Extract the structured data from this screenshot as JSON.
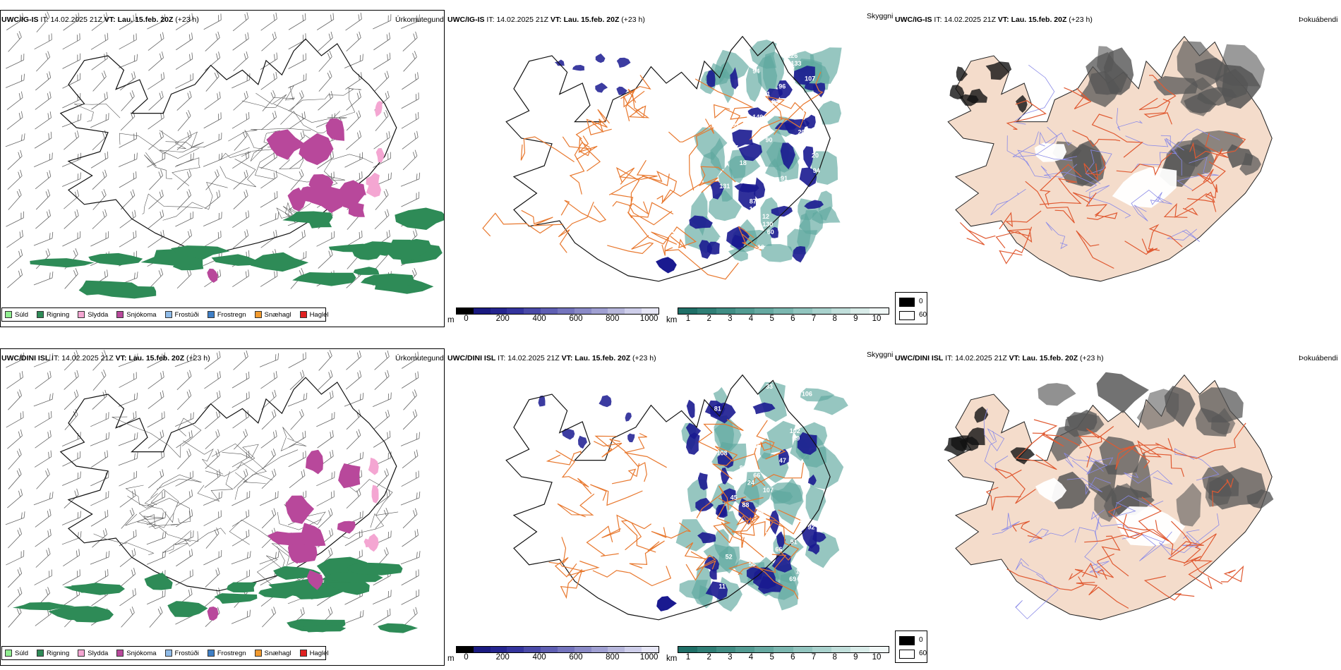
{
  "rows": [
    {
      "precip": {
        "model": "UWC/IG-IS",
        "it_label": "IT:",
        "it": "14.02.2025 21Z",
        "vt_label": "VT:",
        "vt": "Lau. 15.feb. 20Z",
        "lead": "(+23 h)",
        "right_title": "Úrkomutegund"
      },
      "cloud": {
        "model": "UWC/IG-IS",
        "it_label": "IT:",
        "it": "14.02.2025 21Z",
        "vt_label": "VT:",
        "vt": "Lau. 15.feb. 20Z",
        "lead": "(+23 h)",
        "right_title": "Skyggni"
      },
      "fog": {
        "model": "UWC/IG-IS",
        "it_label": "IT:",
        "it": "14.02.2025 21Z",
        "vt_label": "VT:",
        "vt": "Lau. 15.feb. 20Z",
        "lead": "(+23 h)",
        "right_title": "Þokuábendi"
      },
      "cloud_labels": [
        "98",
        "126",
        "133",
        "94",
        "107",
        "96",
        "81",
        "86",
        "149",
        "140",
        "91",
        "20",
        "90",
        "97",
        "20",
        "18",
        "94",
        "91",
        "131",
        "100",
        "87",
        "102",
        "12",
        "130",
        "60",
        "7",
        "10",
        "39"
      ]
    },
    {
      "precip": {
        "model": "UWC/DINI ISL",
        "it_label": "IT:",
        "it": "14.02.2025 21Z",
        "vt_label": "VT:",
        "vt": "Lau. 15.feb. 20Z",
        "lead": "(+23 h)",
        "right_title": "Úrkomutegund"
      },
      "cloud": {
        "model": "UWC/DINI ISL",
        "it_label": "IT:",
        "it": "14.02.2025 21Z",
        "vt_label": "VT:",
        "vt": "Lau. 15.feb. 20Z",
        "lead": "(+23 h)",
        "right_title": "Skyggni"
      },
      "fog": {
        "model": "UWC/DINI ISL",
        "it_label": "IT:",
        "it": "14.02.2025 21Z",
        "vt_label": "VT:",
        "vt": "Lau. 15.feb. 20Z",
        "lead": "(+23 h)",
        "right_title": "Þokuábendi"
      },
      "cloud_labels": [
        "33",
        "106",
        "157",
        "81",
        "122",
        "77",
        "102",
        "89",
        "122",
        "108",
        "47",
        "89",
        "66",
        "24",
        "107",
        "45",
        "88",
        "86",
        "12",
        "92",
        "12",
        "91",
        "66",
        "52",
        "56",
        "10",
        "69",
        "11",
        "58"
      ]
    }
  ],
  "precip_legend": [
    {
      "label": "Súld",
      "color": "#90ee90"
    },
    {
      "label": "Rigning",
      "color": "#2e8b57"
    },
    {
      "label": "Slydda",
      "color": "#f4a6d2"
    },
    {
      "label": "Snjókoma",
      "color": "#b8489b"
    },
    {
      "label": "Frostúði",
      "color": "#8fbbe8"
    },
    {
      "label": "Frostregn",
      "color": "#3f7fc6"
    },
    {
      "label": "Snæhagl",
      "color": "#f29a2e"
    },
    {
      "label": "Haglél",
      "color": "#e02020"
    }
  ],
  "cloud_base_scale": {
    "unit": "m",
    "ticks": [
      "0",
      "200",
      "400",
      "600",
      "800",
      "1000"
    ],
    "colors": [
      "#000000",
      "#1a1a80",
      "#25258f",
      "#34349d",
      "#4a4aa8",
      "#5f5fb3",
      "#7474bd",
      "#8a8ac7",
      "#a0a0d2",
      "#b7b7dc",
      "#ceceea",
      "#e6e6f5"
    ]
  },
  "visibility_scale": {
    "unit": "km",
    "ticks": [
      "1",
      "2",
      "3",
      "4",
      "5",
      "6",
      "7",
      "8",
      "9",
      "10"
    ],
    "colors": [
      "#1f6f67",
      "#2f7e75",
      "#408d84",
      "#529b92",
      "#66a9a1",
      "#7bb7b0",
      "#92c5bf",
      "#a9d2cd",
      "#c1dfdb",
      "#d9ece9",
      "#f0f7f6"
    ]
  },
  "fog_scale": {
    "items": [
      {
        "label": "0",
        "color": "#000000"
      },
      {
        "label": "60",
        "color": "#ffffff"
      }
    ]
  },
  "colors": {
    "land_fill": "#f4dccb",
    "road": "#e8782e",
    "road_fog": "#e05a32",
    "river": "#8a8ae8",
    "snow": "#b8489b",
    "rain": "#2e8b57",
    "sleet": "#f4a6d2",
    "cloud_dark": "#1a1a90",
    "vis_teal": "#5ea79e"
  },
  "icons": {
    "wind": "wind-barb-icon"
  }
}
